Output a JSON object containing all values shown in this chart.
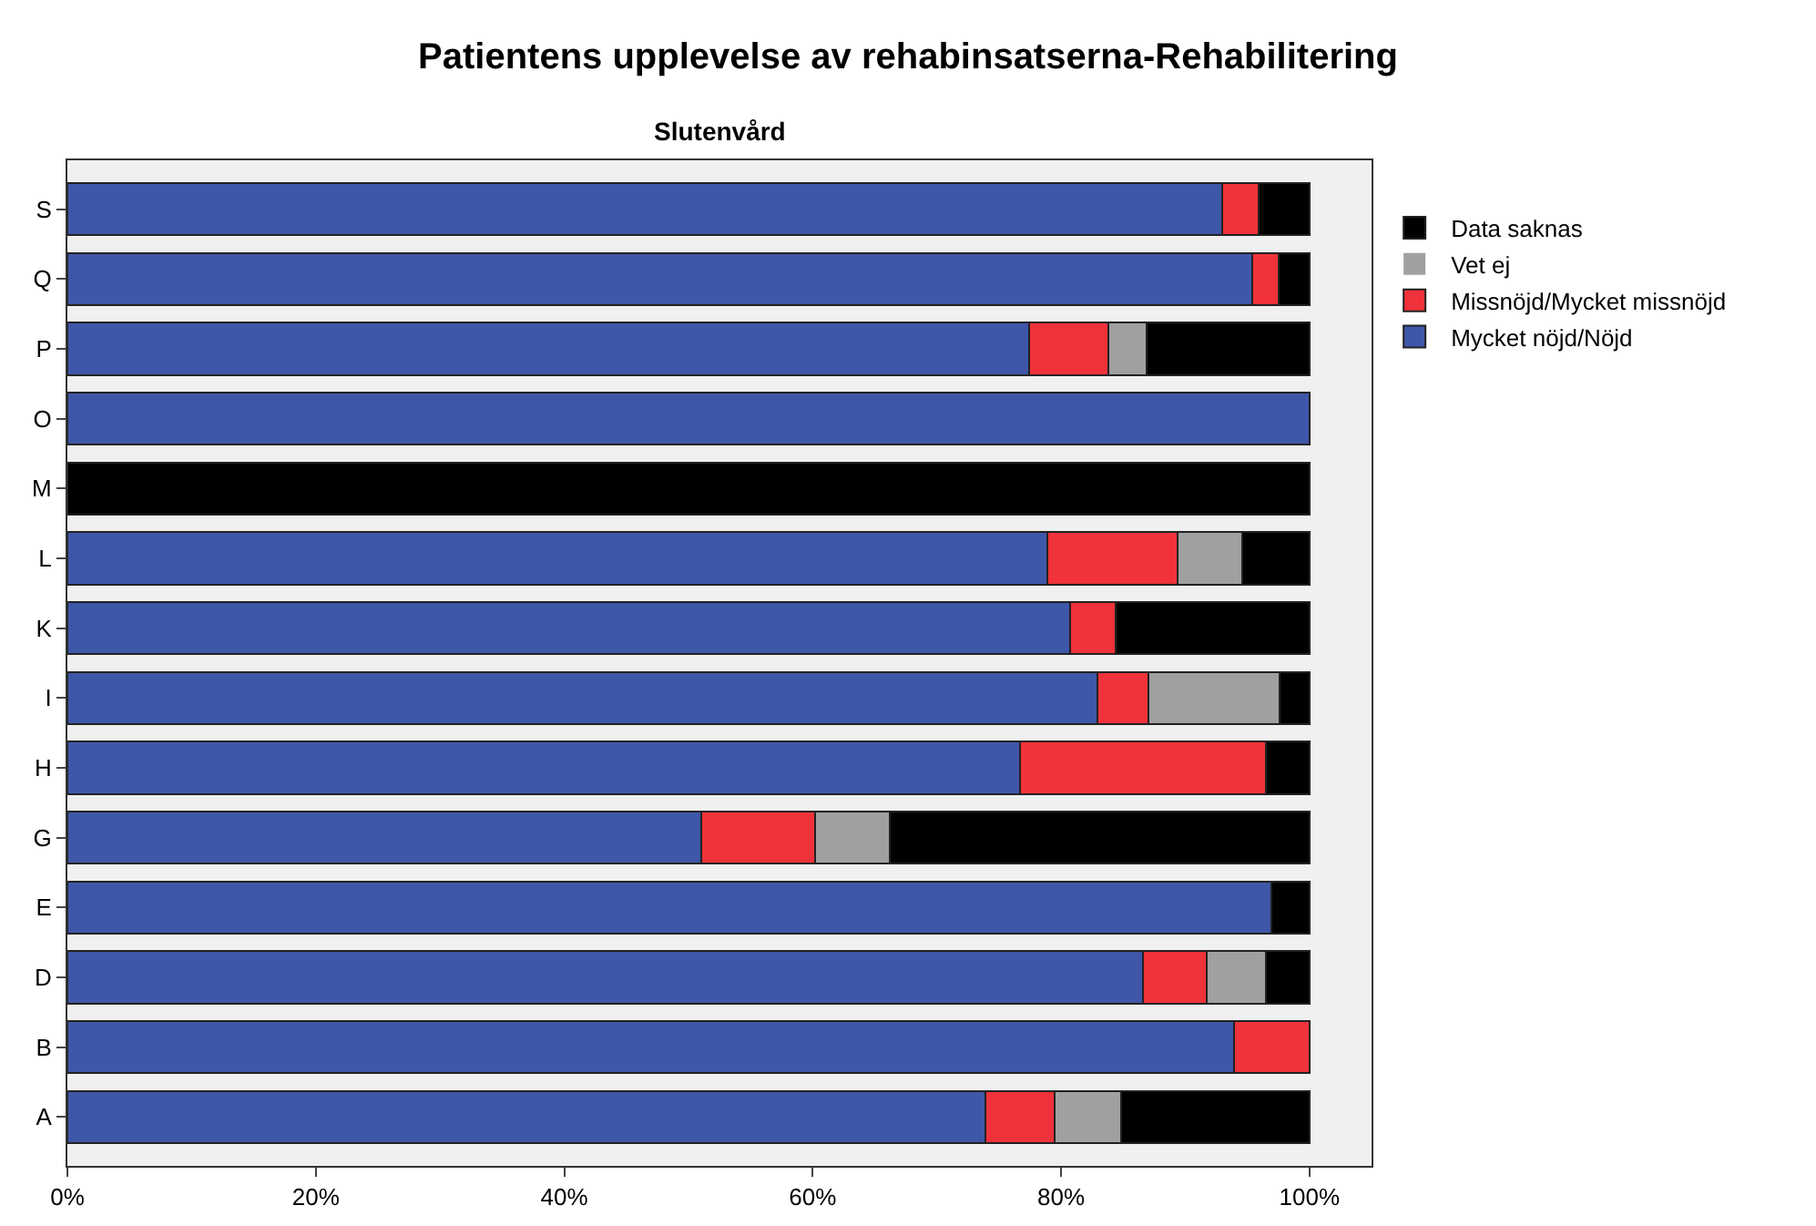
{
  "chart_data": {
    "type": "bar",
    "orientation": "horizontal",
    "stacked": true,
    "title": "Patientens upplevelse av rehabinsatserna-Rehabilitering",
    "subtitle": "Slutenvård",
    "categories": [
      "S",
      "Q",
      "P",
      "O",
      "M",
      "L",
      "K",
      "I",
      "H",
      "G",
      "E",
      "D",
      "B",
      "A"
    ],
    "series": [
      {
        "name": "Mycket nöjd/Nöjd",
        "color": "#3f57a8",
        "values": [
          93.0,
          95.4,
          77.4,
          100,
          0,
          78.9,
          80.7,
          82.9,
          76.7,
          51.0,
          96.9,
          86.6,
          93.9,
          73.9
        ]
      },
      {
        "name": "Missnöjd/Mycket missnöjd",
        "color": "#f0323a",
        "values": [
          2.9,
          2.1,
          6.4,
          0,
          0,
          10.5,
          3.7,
          4.1,
          19.8,
          9.2,
          0,
          5.1,
          6.1,
          5.6
        ]
      },
      {
        "name": "Vet ej",
        "color": "#a0a0a0",
        "values": [
          0,
          0,
          3.1,
          0,
          0,
          5.2,
          0,
          10.6,
          0,
          6.0,
          0,
          4.8,
          0,
          5.3
        ]
      },
      {
        "name": "Data saknas",
        "color": "#000000",
        "values": [
          4.1,
          2.5,
          13.1,
          0,
          100,
          5.4,
          15.6,
          2.4,
          3.5,
          33.8,
          3.1,
          3.5,
          0,
          15.2
        ]
      }
    ],
    "xlim": [
      0,
      105
    ],
    "xticks": [
      {
        "value": 0,
        "label": "0%"
      },
      {
        "value": 20,
        "label": "20%"
      },
      {
        "value": 40,
        "label": "40%"
      },
      {
        "value": 60,
        "label": "60%"
      },
      {
        "value": 80,
        "label": "80%"
      },
      {
        "value": 100,
        "label": "100%"
      }
    ],
    "grid": false,
    "legend": "top right"
  }
}
